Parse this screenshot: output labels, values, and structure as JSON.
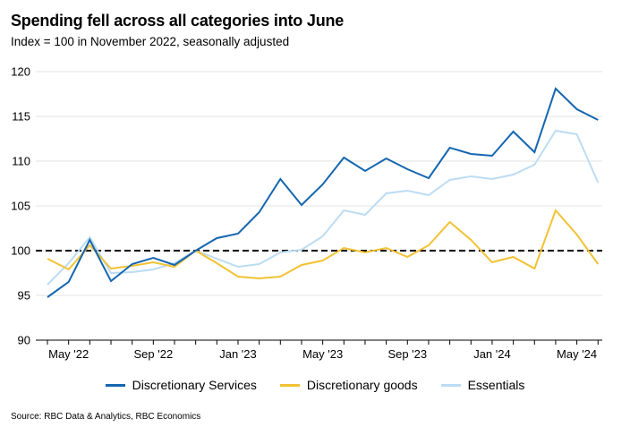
{
  "title": "Spending fell across all categories into June",
  "subtitle": "Index = 100 in November 2022, seasonally adjusted",
  "source": "Source: RBC Data & Analytics, RBC Economics",
  "chart_data": {
    "type": "line",
    "title": "Spending fell across all categories into June",
    "ylabel": "Index = 100 in November 2022, seasonally adjusted",
    "ylim": [
      90,
      120
    ],
    "yticks": [
      90,
      95,
      100,
      105,
      110,
      115,
      120
    ],
    "x": [
      "Apr 2022",
      "May 2022",
      "Jun 2022",
      "Jul 2022",
      "Aug 2022",
      "Sep 2022",
      "Oct 2022",
      "Nov 2022",
      "Dec 2022",
      "Jan 2023",
      "Feb 2023",
      "Mar 2023",
      "Apr 2023",
      "May 2023",
      "Jun 2023",
      "Jul 2023",
      "Aug 2023",
      "Sep 2023",
      "Oct 2023",
      "Nov 2023",
      "Dec 2023",
      "Jan 2024",
      "Feb 2024",
      "Mar 2024",
      "Apr 2024",
      "May 2024",
      "Jun 2024"
    ],
    "xtick_labels": [
      {
        "index": 1,
        "label": "May '22"
      },
      {
        "index": 5,
        "label": "Sep '22"
      },
      {
        "index": 9,
        "label": "Jan '23"
      },
      {
        "index": 13,
        "label": "May '23"
      },
      {
        "index": 17,
        "label": "Sep '23"
      },
      {
        "index": 21,
        "label": "Jan '24"
      },
      {
        "index": 25,
        "label": "May '24"
      }
    ],
    "x_start_offset": -0.55,
    "x_end_offset": 0.2,
    "reference_line": 100,
    "series": [
      {
        "name": "Discretionary Services",
        "color": "#1566b0",
        "values": [
          94.8,
          96.5,
          101.2,
          96.6,
          98.5,
          99.2,
          98.4,
          100.0,
          101.4,
          101.9,
          104.3,
          108.0,
          105.1,
          107.4,
          110.4,
          108.9,
          110.3,
          109.1,
          108.1,
          111.5,
          110.8,
          110.6,
          113.3,
          111.0,
          118.1,
          115.8,
          114.6
        ]
      },
      {
        "name": "Discretionary goods",
        "color": "#f2c233",
        "values": [
          99.1,
          97.9,
          100.6,
          98.0,
          98.3,
          98.7,
          98.2,
          100.0,
          98.6,
          97.1,
          96.9,
          97.1,
          98.4,
          98.9,
          100.3,
          99.8,
          100.3,
          99.3,
          100.6,
          103.2,
          101.2,
          98.7,
          99.3,
          98.0,
          104.5,
          101.8,
          98.5
        ]
      },
      {
        "name": "Essentials",
        "color": "#bcdcf2",
        "values": [
          96.2,
          98.6,
          101.5,
          97.5,
          97.6,
          97.9,
          98.6,
          100.0,
          99.1,
          98.2,
          98.5,
          99.8,
          100.1,
          101.6,
          104.5,
          104.0,
          106.4,
          106.7,
          106.2,
          107.9,
          108.3,
          108.0,
          108.5,
          109.6,
          113.4,
          113.0,
          107.6
        ]
      }
    ]
  }
}
